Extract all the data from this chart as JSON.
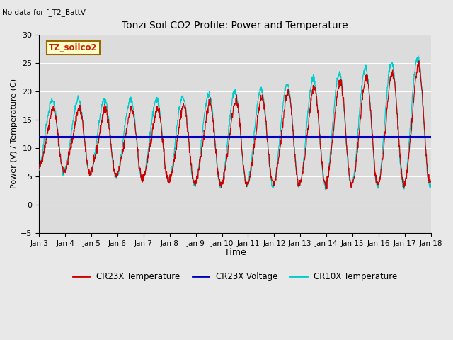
{
  "title": "Tonzi Soil CO2 Profile: Power and Temperature",
  "subtitle": "No data for f_T2_BattV",
  "xlabel": "Time",
  "ylabel": "Power (V) / Temperature (C)",
  "ylim": [
    -5,
    30
  ],
  "xlim": [
    0,
    15
  ],
  "x_tick_labels": [
    "Jan 3",
    "Jan 4",
    "Jan 5",
    "Jan 6",
    "Jan 7",
    "Jan 8",
    "Jan 9",
    "Jan 10",
    "Jan 11",
    "Jan 12",
    "Jan 13",
    "Jan 14",
    "Jan 15",
    "Jan 16",
    "Jan 17",
    "Jan 18"
  ],
  "voltage_level": 12.0,
  "fig_facecolor": "#e8e8e8",
  "plot_bg_color": "#dcdcdc",
  "legend_label_box": "TZ_soilco2",
  "series": {
    "cr23x_temp": {
      "color": "#cc0000",
      "label": "CR23X Temperature"
    },
    "cr10x_temp": {
      "color": "#00cccc",
      "label": "CR10X Temperature"
    },
    "voltage": {
      "color": "#0000bb",
      "label": "CR23X Voltage"
    }
  },
  "amp_envelope": [
    10.5,
    10.5,
    11.0,
    11.5,
    12.0,
    13.0,
    14.0,
    14.5,
    15.0,
    16.0,
    17.0,
    18.0,
    19.0,
    20.0,
    21.0
  ],
  "base_envelope": [
    6.0,
    6.0,
    5.5,
    5.0,
    4.5,
    4.0,
    3.5,
    3.5,
    3.5,
    3.5,
    3.5,
    3.5,
    3.5,
    3.5,
    3.5
  ]
}
